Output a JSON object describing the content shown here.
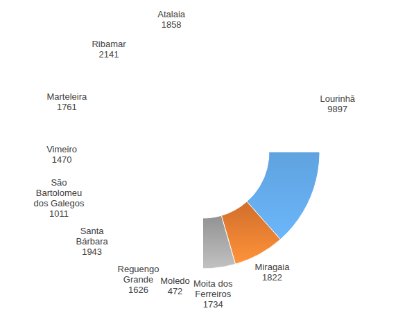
{
  "chart_data": {
    "type": "donut",
    "categories": [
      "Lourinhã",
      "Miragaia",
      "Moita dos Ferreiros",
      "Moledo",
      "Reguengo Grande",
      "Santa Bárbara",
      "São Bartolomeu dos Galegos",
      "Vimeiro",
      "Marteleira",
      "Ribamar",
      "Atalaia"
    ],
    "values": [
      9897,
      1822,
      1734,
      472,
      1626,
      1943,
      1011,
      1470,
      1761,
      2141,
      1858
    ],
    "colors": [
      "#5b9bd5",
      "#ed7d31",
      "#a5a5a5",
      "#ffc000",
      "#4472c4",
      "#70ad47",
      "#255e91",
      "#c55a11",
      "#7b7b7b",
      "#bf9000",
      "#2f5597"
    ],
    "data_labels": true
  }
}
